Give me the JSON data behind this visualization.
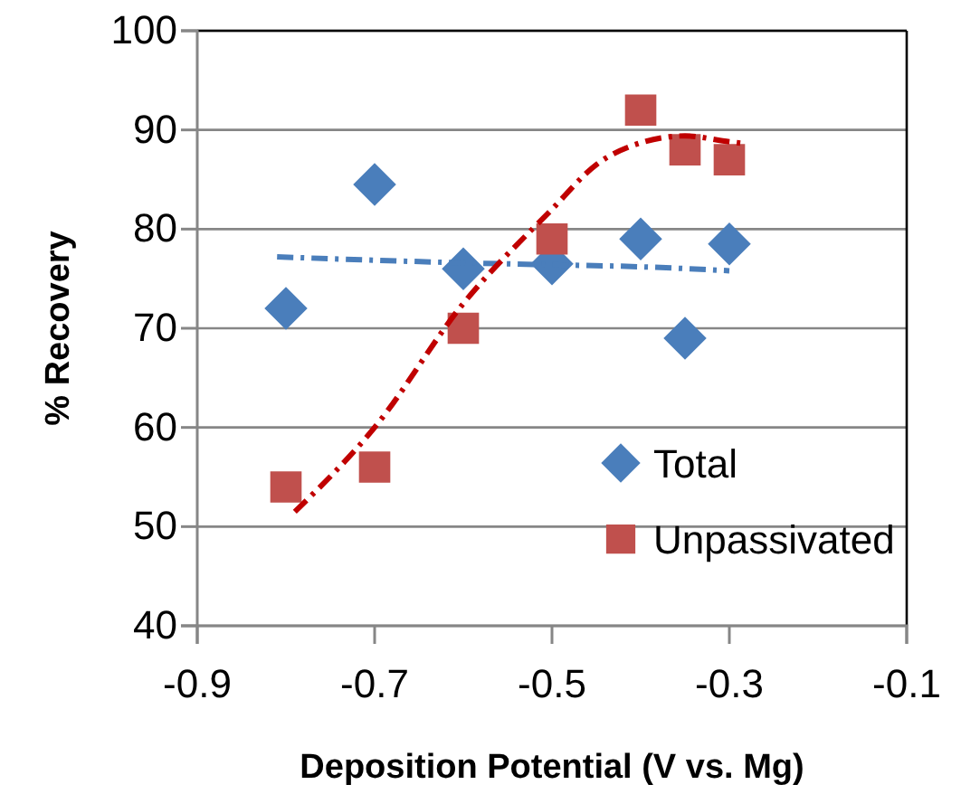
{
  "chart_data": {
    "type": "scatter",
    "xlabel": "Deposition Potential (V vs. Mg)",
    "ylabel": "% Recovery",
    "xlim": [
      -0.9,
      -0.1
    ],
    "xticks": [
      -0.9,
      -0.7,
      -0.5,
      -0.3,
      -0.1
    ],
    "ylim": [
      40,
      100
    ],
    "yticks": [
      40,
      50,
      60,
      70,
      80,
      90,
      100
    ],
    "grid": "y",
    "legend": "bottom right",
    "series": [
      {
        "name": "Total",
        "color": "#4a7ebb",
        "marker": "diamond",
        "x": [
          -0.8,
          -0.7,
          -0.6,
          -0.5,
          -0.4,
          -0.35,
          -0.3
        ],
        "values": [
          72,
          84.5,
          76,
          76.5,
          79,
          69,
          78.5
        ]
      },
      {
        "name": "Unpassivated",
        "color": "#c0504d",
        "marker": "square",
        "x": [
          -0.8,
          -0.7,
          -0.6,
          -0.5,
          -0.4,
          -0.35,
          -0.3
        ],
        "values": [
          54,
          56,
          70,
          79,
          92,
          88,
          87
        ]
      },
      {
        "type": "line",
        "color": "#4a7ebb",
        "line_style": "dashed",
        "marker": "none",
        "x": [
          -0.81,
          -0.6,
          -0.5,
          -0.4,
          -0.3
        ],
        "values": [
          77.2,
          76.6,
          76.4,
          76.2,
          75.8
        ]
      },
      {
        "type": "line",
        "color": "#c00000",
        "line_style": "dashed",
        "marker": "none",
        "x": [
          -0.79,
          -0.7,
          -0.6,
          -0.5,
          -0.45,
          -0.4,
          -0.35,
          -0.3,
          -0.28
        ],
        "values": [
          51.5,
          60,
          72.5,
          82,
          86.5,
          88.7,
          89.4,
          88.8,
          88.6
        ]
      }
    ]
  }
}
